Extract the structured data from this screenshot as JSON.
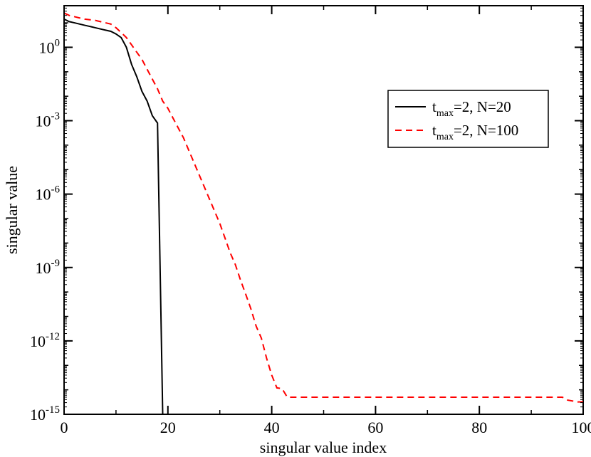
{
  "chart_data": {
    "type": "line",
    "xlabel": "singular value index",
    "ylabel": "singular value",
    "xlim": [
      0,
      100
    ],
    "ylim_log10": [
      -15,
      1.7
    ],
    "yscale": "log",
    "grid": false,
    "legend_position": "right",
    "x_ticks": [
      {
        "value": 0,
        "label": "0"
      },
      {
        "value": 20,
        "label": "20"
      },
      {
        "value": 40,
        "label": "40"
      },
      {
        "value": 60,
        "label": "60"
      },
      {
        "value": 80,
        "label": "80"
      },
      {
        "value": 100,
        "label": "100"
      }
    ],
    "y_ticks": [
      {
        "exp": 0,
        "base": "10",
        "power": "0"
      },
      {
        "exp": -3,
        "base": "10",
        "power": "-3"
      },
      {
        "exp": -6,
        "base": "10",
        "power": "-6"
      },
      {
        "exp": -9,
        "base": "10",
        "power": "-9"
      },
      {
        "exp": -12,
        "base": "10",
        "power": "-12"
      },
      {
        "exp": -15,
        "base": "10",
        "power": "-15"
      }
    ],
    "series": [
      {
        "name": "t_max=2, N=20",
        "legend_parts": {
          "t": "t",
          "sub": "max",
          "rest": "=2, N=20"
        },
        "color": "#000000",
        "dash": "",
        "points": [
          [
            0,
            14.1
          ],
          [
            1,
            11.2
          ],
          [
            2,
            10.0
          ],
          [
            3,
            8.9
          ],
          [
            4,
            7.9
          ],
          [
            5,
            7.1
          ],
          [
            6,
            6.3
          ],
          [
            7,
            5.6
          ],
          [
            8,
            5.0
          ],
          [
            9,
            4.5
          ],
          [
            10,
            3.5
          ],
          [
            11,
            2.5
          ],
          [
            12,
            1.0
          ],
          [
            13,
            0.2
          ],
          [
            14,
            0.063
          ],
          [
            15,
            0.0158
          ],
          [
            16,
            0.0063
          ],
          [
            17,
            0.0016
          ],
          [
            18,
            0.0008
          ],
          [
            19,
            1e-15
          ]
        ]
      },
      {
        "name": "t_max=2, N=100",
        "legend_parts": {
          "t": "t",
          "sub": "max",
          "rest": "=2, N=100"
        },
        "color": "#ff0000",
        "dash": "9,6",
        "points": [
          [
            0,
            25.1
          ],
          [
            1,
            20.0
          ],
          [
            2,
            17.8
          ],
          [
            3,
            15.8
          ],
          [
            4,
            14.1
          ],
          [
            5,
            13.3
          ],
          [
            6,
            12.6
          ],
          [
            7,
            11.2
          ],
          [
            8,
            10.0
          ],
          [
            9,
            8.9
          ],
          [
            10,
            6.3
          ],
          [
            11,
            4.0
          ],
          [
            12,
            2.5
          ],
          [
            13,
            1.26
          ],
          [
            14,
            0.63
          ],
          [
            15,
            0.32
          ],
          [
            16,
            0.126
          ],
          [
            17,
            0.05
          ],
          [
            18,
            0.02
          ],
          [
            19,
            0.0063
          ],
          [
            20,
            0.0032
          ],
          [
            21,
            0.00126
          ],
          [
            22,
            0.0005
          ],
          [
            23,
            0.0002
          ],
          [
            24,
            6.3e-05
          ],
          [
            25,
            2e-05
          ],
          [
            26,
            6.3e-06
          ],
          [
            27,
            2e-06
          ],
          [
            28,
            6.3e-07
          ],
          [
            29,
            2e-07
          ],
          [
            30,
            6.3e-08
          ],
          [
            31,
            1.6e-08
          ],
          [
            32,
            4e-09
          ],
          [
            33,
            1.3e-09
          ],
          [
            34,
            3e-10
          ],
          [
            35,
            8e-11
          ],
          [
            36,
            2e-11
          ],
          [
            37,
            4e-12
          ],
          [
            38,
            1.3e-12
          ],
          [
            39,
            2e-13
          ],
          [
            40,
            4e-14
          ],
          [
            41,
            1.2e-14
          ],
          [
            42,
            1.12e-14
          ],
          [
            43,
            5e-15
          ],
          [
            44,
            5e-15
          ],
          [
            60,
            5e-15
          ],
          [
            80,
            5e-15
          ],
          [
            96,
            5e-15
          ],
          [
            97,
            3.8e-15
          ],
          [
            99,
            3.2e-15
          ],
          [
            100,
            3.2e-15
          ]
        ]
      }
    ]
  }
}
